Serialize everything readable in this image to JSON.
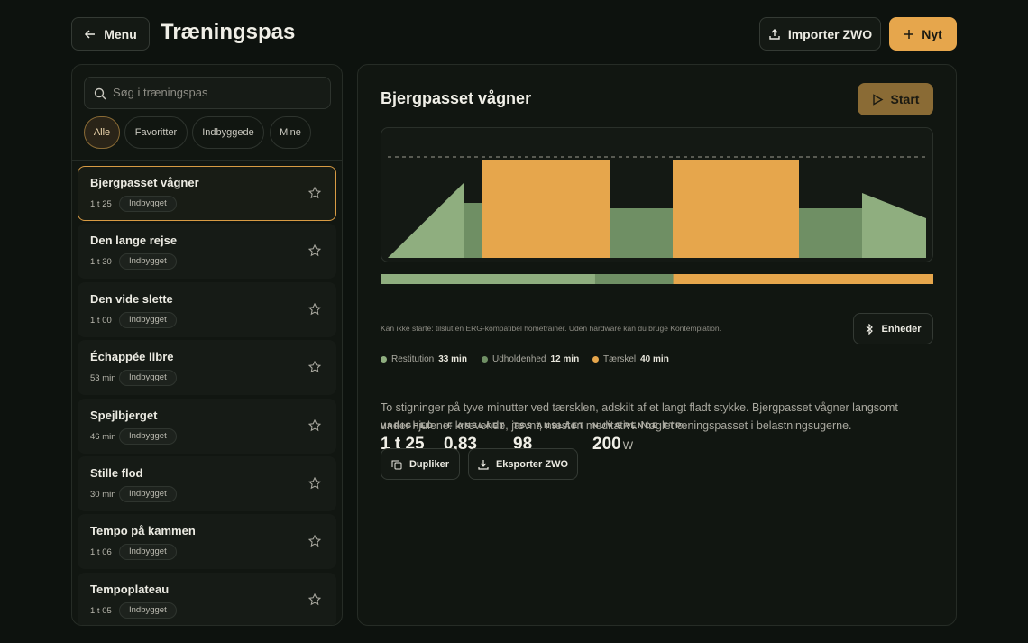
{
  "header": {
    "menu": "Menu",
    "title": "Træningspas",
    "import": "Importer ZWO",
    "new": "Nyt"
  },
  "sidebar": {
    "search_placeholder": "Søg i træningspas",
    "filters": [
      "Alle",
      "Favoritter",
      "Indbyggede",
      "Mine"
    ],
    "items": [
      {
        "name": "Bjergpasset vågner",
        "duration": "1 t 25",
        "badge": "Indbygget"
      },
      {
        "name": "Den lange rejse",
        "duration": "1 t 30",
        "badge": "Indbygget"
      },
      {
        "name": "Den vide slette",
        "duration": "1 t 00",
        "badge": "Indbygget"
      },
      {
        "name": "Échappée libre",
        "duration": "53 min",
        "badge": "Indbygget"
      },
      {
        "name": "Spejlbjerget",
        "duration": "46 min",
        "badge": "Indbygget"
      },
      {
        "name": "Stille flod",
        "duration": "30 min",
        "badge": "Indbygget"
      },
      {
        "name": "Tempo på kammen",
        "duration": "1 t 06",
        "badge": "Indbygget"
      },
      {
        "name": "Tempoplateau",
        "duration": "1 t 05",
        "badge": "Indbygget"
      }
    ]
  },
  "detail": {
    "title": "Bjergpasset vågner",
    "start": "Start",
    "zones": [
      {
        "name": "Restitution",
        "value": 33,
        "unit": "min",
        "color": "#8fae7f"
      },
      {
        "name": "Udholdenhed",
        "value": 12,
        "unit": "min",
        "color": "#6f8f64"
      },
      {
        "name": "Tærskel",
        "value": 40,
        "unit": "min",
        "color": "#e6a64c"
      }
    ],
    "notice": "Kan ikke starte: tilslut en ERG-kompatibel hometrainer. Uden hardware kan du bruge Kontemplation.",
    "units_button": "Enheder",
    "stats": [
      {
        "label": "VARIGHED",
        "value": "1 t 25"
      },
      {
        "label": "IF ANSLÅET",
        "value": "0,83"
      },
      {
        "label": "TSS ANSLÅET",
        "value": "98"
      },
      {
        "label": "NUVÆRENDE FTP",
        "value": "200",
        "unit": "W"
      }
    ],
    "description": "To stigninger på tyve minutter ved tærsklen, adskilt af et langt fladt stykke. Bjergpasset vågner langsomt under hjulene: krævende, jævnt, næsten meditativt. Nøgletræningspasset i belastningsugerne.",
    "duplicate": "Dupliker",
    "export": "Eksporter ZWO"
  }
}
